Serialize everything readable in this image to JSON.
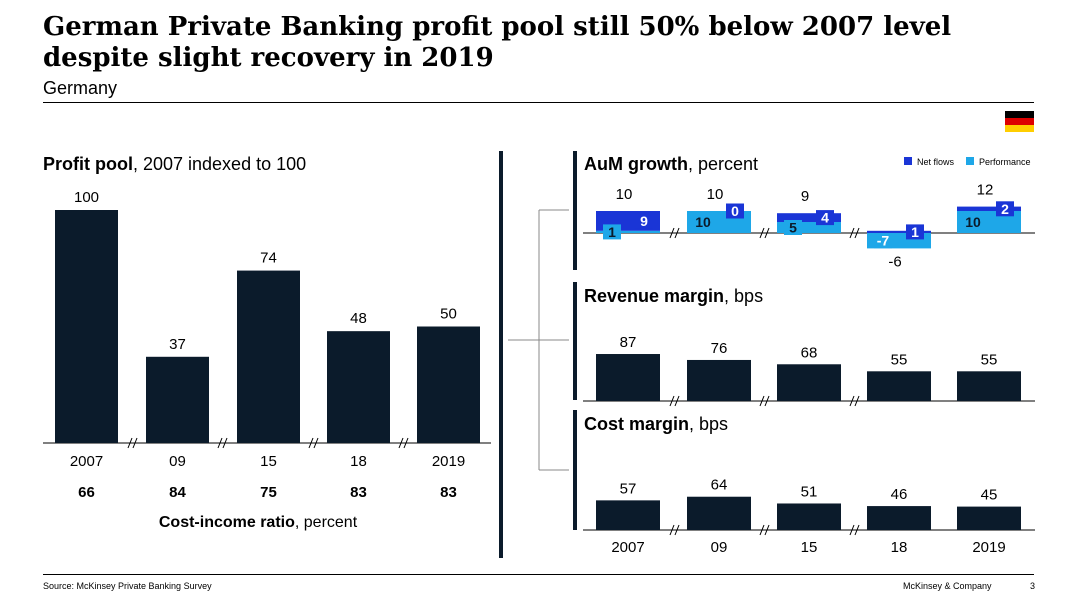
{
  "header": {
    "title": "German Private Banking profit pool still 50% below 2007 level despite slight recovery in 2019",
    "subtitle": "Germany"
  },
  "footer": {
    "source": "Source: McKinsey Private Banking Survey",
    "company": "McKinsey & Company",
    "page": "3"
  },
  "colors": {
    "bar_dark": "#0b1b2b",
    "net_flows": "#1a35d6",
    "performance": "#1ea7e8",
    "flag": [
      "#000000",
      "#dd0000",
      "#ffce00"
    ]
  },
  "chart_data": [
    {
      "type": "bar",
      "title_bold": "Profit pool",
      "title_rest": ", 2007 indexed to 100",
      "categories": [
        "2007",
        "09",
        "15",
        "18",
        "2019"
      ],
      "values": [
        100,
        37,
        74,
        48,
        50
      ],
      "ylim": [
        0,
        100
      ],
      "secondary_row": {
        "label_bold": "Cost-income ratio",
        "label_rest": ", percent",
        "values": [
          66,
          84,
          75,
          83,
          83
        ]
      }
    },
    {
      "type": "bar",
      "stacked": true,
      "title_bold": "AuM growth",
      "title_rest": ", percent",
      "categories": [
        "2007",
        "09",
        "15",
        "18",
        "2019"
      ],
      "legend": [
        "Net flows",
        "Performance"
      ],
      "legend_position": "top-right",
      "totals": [
        10,
        10,
        9,
        -6,
        12
      ],
      "series": [
        {
          "name": "Net flows",
          "values": [
            9,
            0,
            4,
            1,
            2
          ]
        },
        {
          "name": "Performance",
          "values": [
            1,
            10,
            5,
            -7,
            10
          ]
        }
      ]
    },
    {
      "type": "bar",
      "title_bold": "Revenue margin",
      "title_rest": ", bps",
      "categories": [
        "2007",
        "09",
        "15",
        "18",
        "2019"
      ],
      "values": [
        87,
        76,
        68,
        55,
        55
      ]
    },
    {
      "type": "bar",
      "title_bold": "Cost margin",
      "title_rest": ", bps",
      "categories": [
        "2007",
        "09",
        "15",
        "18",
        "2019"
      ],
      "values": [
        57,
        64,
        51,
        46,
        45
      ]
    }
  ]
}
